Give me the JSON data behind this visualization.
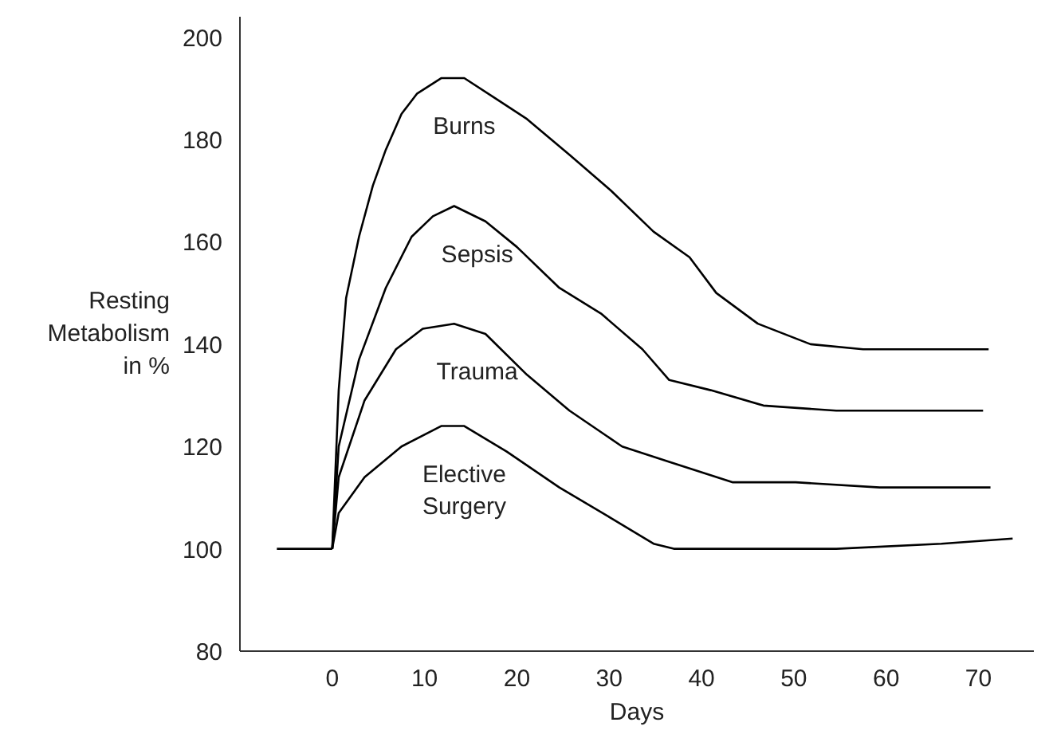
{
  "chart_data": {
    "type": "line",
    "xlabel": "Days",
    "ylabel": "Resting\nMetabolism\nin %",
    "xlim": [
      -10,
      76
    ],
    "ylim": [
      80,
      204
    ],
    "xticks": [
      0,
      10,
      20,
      30,
      40,
      50,
      60,
      70
    ],
    "yticks": [
      80,
      100,
      120,
      140,
      160,
      180,
      200
    ],
    "grid": false,
    "marker": "none",
    "line_style": "solid",
    "series": [
      {
        "color": "#000000",
        "x": [
          -6,
          0
        ],
        "values": [
          100,
          100
        ]
      },
      {
        "name": "Burns",
        "color": "#000000",
        "x": [
          0,
          0.7,
          1.5,
          2.9,
          4.4,
          5.8,
          7.5,
          9.2,
          11.8,
          14.3,
          17.7,
          21.1,
          25.7,
          30.2,
          34.8,
          38.7,
          41.6,
          46.1,
          51.8,
          57.5,
          71.1
        ],
        "values": [
          100,
          131,
          149,
          161,
          171,
          178,
          185,
          189,
          192,
          192,
          188,
          184,
          177,
          170,
          162,
          157,
          150,
          144,
          140,
          139,
          139
        ]
      },
      {
        "name": "Sepsis",
        "color": "#000000",
        "x": [
          0,
          0.7,
          2.9,
          5.8,
          8.6,
          10.9,
          13.2,
          16.6,
          20,
          24.6,
          29.1,
          33.6,
          36.5,
          41,
          46.7,
          54.6,
          70.5
        ],
        "values": [
          100,
          120,
          137,
          151,
          161,
          165,
          167,
          164,
          159,
          151,
          146,
          139,
          133,
          131,
          128,
          127,
          127
        ]
      },
      {
        "name": "Trauma",
        "color": "#000000",
        "x": [
          0,
          0.7,
          3.5,
          6.9,
          9.8,
          13.2,
          16.6,
          21.1,
          25.7,
          31.4,
          36.5,
          43.4,
          50.2,
          59.3,
          71.3
        ],
        "values": [
          100,
          114,
          129,
          139,
          143,
          144,
          142,
          134,
          127,
          120,
          117,
          113,
          113,
          112,
          112
        ]
      },
      {
        "name": "Elective Surgery",
        "color": "#000000",
        "x": [
          0,
          0.7,
          3.5,
          7.5,
          11.8,
          14.3,
          18.9,
          24.6,
          30.2,
          34.8,
          37,
          54.6,
          66,
          73.7
        ],
        "values": [
          100,
          107,
          114,
          120,
          124,
          124,
          119,
          112,
          106,
          101,
          100,
          100,
          101,
          102
        ]
      }
    ]
  }
}
